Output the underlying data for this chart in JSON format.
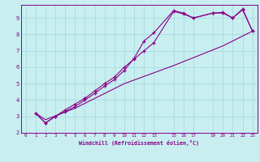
{
  "title": "",
  "xlabel": "Windchill (Refroidissement éolien,°C)",
  "bg_color": "#c8eef0",
  "grid_color": "#a8dce0",
  "line_color": "#880088",
  "xlim": [
    -0.5,
    23.5
  ],
  "ylim": [
    2.0,
    9.8
  ],
  "xticks": [
    0,
    1,
    2,
    3,
    4,
    5,
    6,
    7,
    8,
    9,
    10,
    11,
    12,
    13,
    15,
    16,
    17,
    19,
    20,
    21,
    22,
    23
  ],
  "yticks": [
    2,
    3,
    4,
    5,
    6,
    7,
    8,
    9
  ],
  "line1_x": [
    1,
    2,
    3,
    4,
    5,
    6,
    7,
    8,
    9,
    10,
    11,
    12,
    13,
    15,
    16,
    17,
    19,
    20,
    21,
    22,
    23
  ],
  "line1_y": [
    3.2,
    2.6,
    3.0,
    3.3,
    3.6,
    4.0,
    4.4,
    4.85,
    5.25,
    5.8,
    6.55,
    7.6,
    8.1,
    9.45,
    9.3,
    9.0,
    9.3,
    9.35,
    9.0,
    9.55,
    8.2
  ],
  "line2_x": [
    1,
    2,
    3,
    4,
    5,
    6,
    7,
    8,
    9,
    10,
    11,
    12,
    13,
    15,
    16,
    17,
    19,
    20,
    21,
    22,
    23
  ],
  "line2_y": [
    3.2,
    2.6,
    3.0,
    3.4,
    3.75,
    4.1,
    4.55,
    5.0,
    5.4,
    6.0,
    6.5,
    7.0,
    7.5,
    9.4,
    9.25,
    9.0,
    9.3,
    9.3,
    9.0,
    9.5,
    8.2
  ],
  "line3_x": [
    1,
    2,
    5,
    10,
    15,
    20,
    23
  ],
  "line3_y": [
    3.2,
    2.8,
    3.5,
    5.0,
    6.1,
    7.3,
    8.2
  ]
}
